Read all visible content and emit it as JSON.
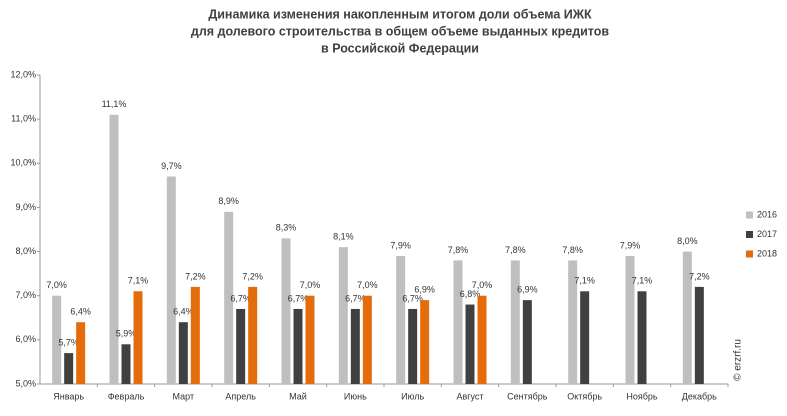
{
  "chart_data": {
    "type": "bar",
    "title": [
      "Динамика изменения накопленным итогом доли объема ИЖК",
      "для долевого строительства  в общем объеме выданных кредитов",
      "в Российской  Федерации"
    ],
    "categories": [
      "Январь",
      "Февраль",
      "Март",
      "Апрель",
      "Май",
      "Июнь",
      "Июль",
      "Август",
      "Сентябрь",
      "Октябрь",
      "Ноябрь",
      "Декабрь"
    ],
    "series": [
      {
        "name": "2016",
        "color": "#bfbfbf",
        "label_color": "#333333",
        "values": [
          7.0,
          11.1,
          9.7,
          8.9,
          8.3,
          8.1,
          7.9,
          7.8,
          7.8,
          7.8,
          7.9,
          8.0
        ],
        "value_labels": [
          "7,0%",
          "11,1%",
          "9,7%",
          "8,9%",
          "8,3%",
          "8,1%",
          "7,9%",
          "7,8%",
          "7,8%",
          "7,8%",
          "7,9%",
          "8,0%"
        ]
      },
      {
        "name": "2017",
        "color": "#404040",
        "label_color": "#333333",
        "values": [
          5.7,
          5.9,
          6.4,
          6.7,
          6.7,
          6.7,
          6.7,
          6.8,
          6.9,
          7.1,
          7.1,
          7.2
        ],
        "value_labels": [
          "5,7%",
          "5,9%",
          "6,4%",
          "6,7%",
          "6,7%",
          "6,7%",
          "6,7%",
          "6,8%",
          "6,9%",
          "7,1%",
          "7,1%",
          "7,2%"
        ]
      },
      {
        "name": "2018",
        "color": "#e46c0a",
        "label_color": "#e46c0a",
        "values": [
          6.4,
          7.1,
          7.2,
          7.2,
          7.0,
          7.0,
          6.9,
          7.0,
          null,
          null,
          null,
          null
        ],
        "value_labels": [
          "6,4%",
          "7,1%",
          "7,2%",
          "7,2%",
          "7,0%",
          "7,0%",
          "6,9%",
          "7,0%",
          null,
          null,
          null,
          null
        ]
      }
    ],
    "ylim": [
      5,
      12
    ],
    "yticks": [
      {
        "value": 5,
        "label": "5,0%"
      },
      {
        "value": 6,
        "label": "6,0%"
      },
      {
        "value": 7,
        "label": "7,0%"
      },
      {
        "value": 8,
        "label": "8,0%"
      },
      {
        "value": 9,
        "label": "9,0%"
      },
      {
        "value": 10,
        "label": "10,0%"
      },
      {
        "value": 11,
        "label": "11,0%"
      },
      {
        "value": 12,
        "label": "12,0%"
      }
    ],
    "grid": false,
    "legend": "right",
    "watermark": "© erzrf.ru"
  }
}
